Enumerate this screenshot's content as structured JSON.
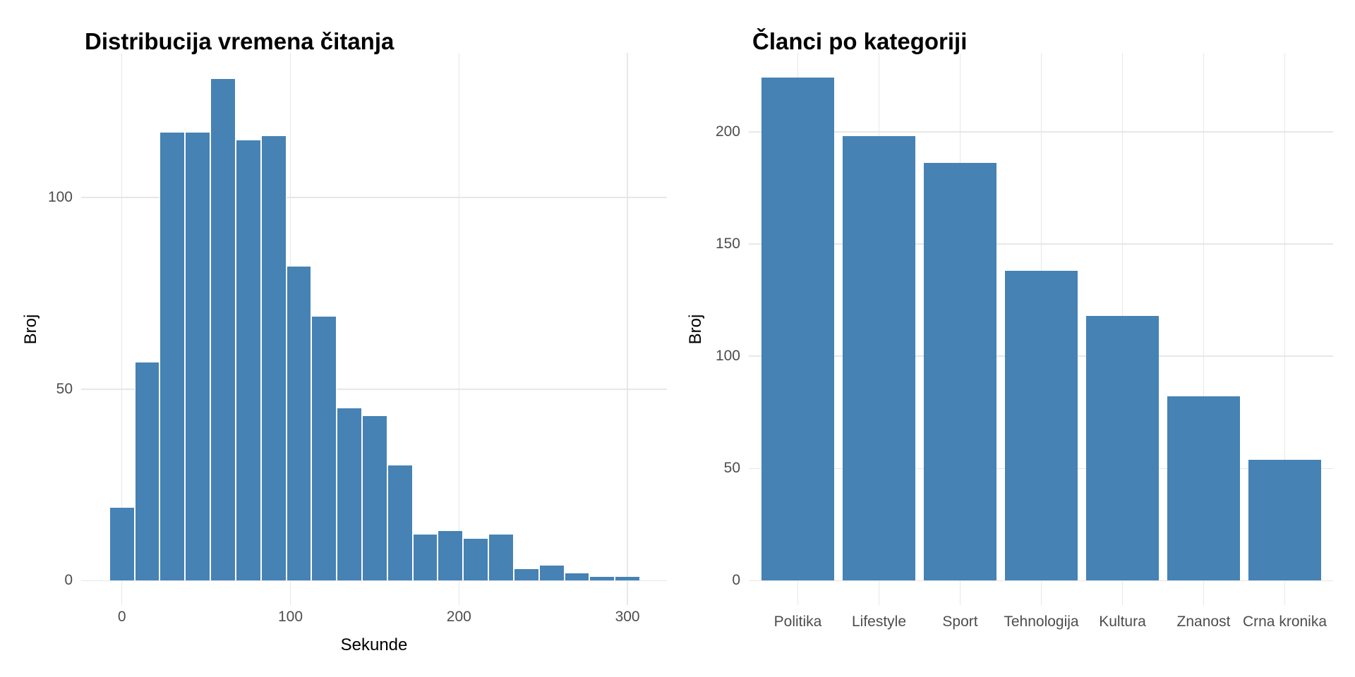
{
  "colors": {
    "bar": "#4682B4",
    "grid": "#E7E7E7",
    "tick_text": "#4D4D4D",
    "title_text": "#000000",
    "background": "#FFFFFF"
  },
  "chart_data": [
    {
      "type": "histogram",
      "title": "Distribucija vremena čitanja",
      "xlabel": "Sekunde",
      "ylabel": "Broj",
      "bin_width": 15,
      "bin_centers": [
        0,
        15,
        30,
        45,
        60,
        75,
        90,
        105,
        120,
        135,
        150,
        165,
        180,
        195,
        210,
        225,
        240,
        255,
        270,
        285,
        300
      ],
      "counts": [
        19,
        57,
        117,
        117,
        131,
        115,
        116,
        82,
        69,
        45,
        43,
        30,
        12,
        13,
        11,
        12,
        3,
        4,
        2,
        1,
        1
      ],
      "xticks": [
        0,
        100,
        200,
        300
      ],
      "yticks": [
        0,
        50,
        100
      ],
      "xlim": [
        -23,
        323
      ],
      "ylim": [
        0,
        137.5
      ],
      "grid": true,
      "legend": false
    },
    {
      "type": "bar",
      "title": "Članci po kategoriji",
      "xlabel": "",
      "ylabel": "Broj",
      "categories": [
        "Politika",
        "Lifestyle",
        "Sport",
        "Tehnologija",
        "Kultura",
        "Znanost",
        "Crna kronika"
      ],
      "values": [
        224,
        198,
        186,
        138,
        118,
        82,
        54
      ],
      "yticks": [
        0,
        50,
        100,
        150,
        200
      ],
      "ylim": [
        0,
        235
      ],
      "grid": true,
      "legend": false
    }
  ]
}
